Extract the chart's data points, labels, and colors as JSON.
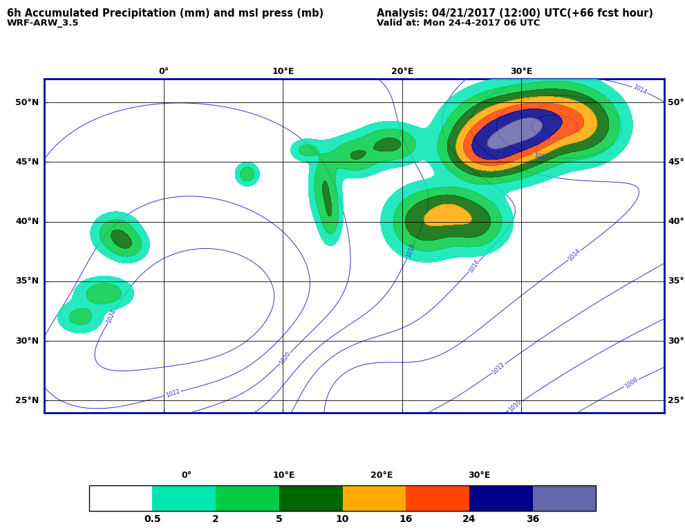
{
  "title_left": "6h Accumulated Precipitation (mm) and msl press (mb)",
  "title_right": "Analysis: 04/21/2017 (12:00) UTC(+66 fcst hour)",
  "subtitle_left": "WRF-ARW_3.5",
  "subtitle_right": "Valid at: Mon 24-4-2017 06 UTC",
  "lon_min": -10,
  "lon_max": 42,
  "lat_min": 24,
  "lat_max": 52,
  "grid_lons": [
    0,
    10,
    20,
    30
  ],
  "grid_lats": [
    25,
    30,
    35,
    40,
    45,
    50
  ],
  "contour_color": "#3333cc",
  "border_color": "#0000aa",
  "background_color": "#ffffff",
  "map_background": "#ffffff",
  "title_fontsize": 10.5,
  "subtitle_fontsize": 9.5,
  "axis_label_fontsize": 9,
  "colorbar_tick_fontsize": 10,
  "cb_colors": [
    "#ffffff",
    "#00e6b3",
    "#00cc44",
    "#006600",
    "#ffaa00",
    "#ff4400",
    "#000088",
    "#6666aa"
  ],
  "cb_boundaries": [
    0,
    0.5,
    2,
    5,
    10,
    16,
    24,
    36,
    60
  ],
  "cb_ticks": [
    0.5,
    2,
    5,
    10,
    16,
    24,
    36
  ],
  "cb_tick_labels": [
    "0.5",
    "2",
    "5",
    "10",
    "16",
    "24",
    "36"
  ],
  "precip_colors": [
    "#00e6b3",
    "#00cc44",
    "#006600",
    "#ffaa00",
    "#ff4400",
    "#000088",
    "#6666aa"
  ],
  "precip_levels": [
    0.5,
    2,
    5,
    10,
    16,
    24,
    36,
    60
  ]
}
